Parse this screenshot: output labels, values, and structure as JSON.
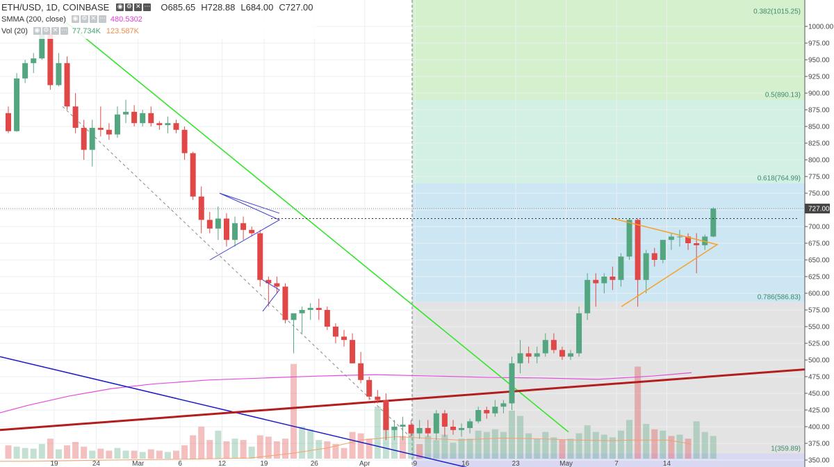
{
  "legend": {
    "symbol": "ETH/USD, 1D, COINBASE",
    "open_label": "O",
    "open": "685.65",
    "high_label": "H",
    "high": "728.88",
    "low_label": "L",
    "low": "684.00",
    "close_label": "C",
    "close": "727.00",
    "ma_label": "SMMA (200, close)",
    "ma_value": "480.5302",
    "vol_label": "Vol (20)",
    "vol_value_1": "77.734K",
    "vol_value_2": "123.587K",
    "buttons": [
      "eye-icon",
      "settings-icon",
      "close-icon",
      "more-icon"
    ]
  },
  "colors": {
    "up": "#53a67f",
    "down": "#e04848",
    "price_line_badge": "#444444",
    "ma_line": "#e54cdc",
    "vol_ma": "#f2a06b",
    "green_trendline": "#34e52a",
    "blue_trendline": "#1c1cc8",
    "red_trendline": "#b31d1d",
    "pennant_blue": "#3e3ecc",
    "triangle_orange": "#f6a128"
  },
  "chart_data": {
    "type": "candlestick",
    "y_axis": {
      "ticks": [
        350,
        375,
        400,
        425,
        450,
        475,
        500,
        525,
        550,
        575,
        600,
        625,
        650,
        675,
        700,
        725,
        750,
        775,
        800,
        825,
        850,
        875,
        900,
        925,
        950,
        975,
        1000
      ],
      "tick_labels": [
        "350.00",
        "375.00",
        "400.00",
        "425.00",
        "450.00",
        "475.00",
        "500.00",
        "525.00",
        "550.00",
        "575.00",
        "600.00",
        "625.00",
        "650.00",
        "675.00",
        "700.00",
        "725.00",
        "750.00",
        "775.00",
        "800.00",
        "825.00",
        "850.00",
        "875.00",
        "900.00",
        "925.00",
        "950.00",
        "975.00",
        "1000.00"
      ],
      "range": [
        332,
        1006
      ]
    },
    "x_axis": {
      "labels": [
        "19",
        "24",
        "Mar",
        "6",
        "12",
        "19",
        "26",
        "Apr",
        "9",
        "16",
        "23",
        "May",
        "7",
        "14"
      ]
    },
    "current_price": "727.00",
    "fibonacci": [
      {
        "label": "0.382(1015.25)",
        "value": 1015.25
      },
      {
        "label": "0.5(890.13)",
        "value": 890.13
      },
      {
        "label": "0.618(764.99)",
        "value": 764.99
      },
      {
        "label": "0.786(586.83)",
        "value": 586.83
      },
      {
        "label": "1(359.89)",
        "value": 359.89
      }
    ],
    "candles": [
      [
        870,
        880,
        840,
        843
      ],
      [
        843,
        930,
        842,
        922
      ],
      [
        922,
        950,
        915,
        945
      ],
      [
        945,
        960,
        930,
        952
      ],
      [
        952,
        1000,
        950,
        990
      ],
      [
        990,
        995,
        905,
        912
      ],
      [
        912,
        960,
        910,
        945
      ],
      [
        945,
        955,
        875,
        880
      ],
      [
        880,
        900,
        840,
        848
      ],
      [
        848,
        860,
        800,
        815
      ],
      [
        815,
        860,
        790,
        848
      ],
      [
        848,
        880,
        835,
        845
      ],
      [
        845,
        855,
        830,
        838
      ],
      [
        838,
        880,
        833,
        868
      ],
      [
        868,
        890,
        855,
        872
      ],
      [
        872,
        882,
        850,
        855
      ],
      [
        855,
        875,
        850,
        870
      ],
      [
        870,
        880,
        850,
        855
      ],
      [
        855,
        858,
        845,
        852
      ],
      [
        852,
        865,
        840,
        855
      ],
      [
        855,
        860,
        840,
        845
      ],
      [
        845,
        850,
        800,
        810
      ],
      [
        810,
        812,
        740,
        745
      ],
      [
        745,
        760,
        690,
        710
      ],
      [
        710,
        722,
        690,
        697
      ],
      [
        697,
        730,
        680,
        712
      ],
      [
        712,
        720,
        670,
        680
      ],
      [
        680,
        715,
        670,
        705
      ],
      [
        705,
        715,
        680,
        695
      ],
      [
        695,
        700,
        685,
        690
      ],
      [
        690,
        695,
        610,
        620
      ],
      [
        620,
        625,
        580,
        615
      ],
      [
        615,
        625,
        600,
        610
      ],
      [
        610,
        615,
        555,
        560
      ],
      [
        560,
        568,
        510,
        570
      ],
      [
        570,
        580,
        540,
        575
      ],
      [
        575,
        585,
        560,
        578
      ],
      [
        578,
        592,
        560,
        575
      ],
      [
        575,
        580,
        545,
        550
      ],
      [
        550,
        555,
        525,
        535
      ],
      [
        535,
        545,
        520,
        530
      ],
      [
        530,
        540,
        495,
        495
      ],
      [
        495,
        512,
        465,
        470
      ],
      [
        470,
        475,
        440,
        445
      ],
      [
        445,
        455,
        435,
        440
      ],
      [
        440,
        450,
        380,
        395
      ],
      [
        395,
        410,
        380,
        400
      ],
      [
        400,
        415,
        380,
        403
      ],
      [
        403,
        410,
        385,
        390
      ],
      [
        390,
        410,
        382,
        398
      ],
      [
        398,
        410,
        385,
        390
      ],
      [
        390,
        425,
        380,
        420
      ],
      [
        420,
        425,
        385,
        400
      ],
      [
        400,
        410,
        388,
        395
      ],
      [
        395,
        405,
        385,
        398
      ],
      [
        398,
        412,
        390,
        408
      ],
      [
        408,
        430,
        405,
        425
      ],
      [
        425,
        430,
        412,
        420
      ],
      [
        420,
        440,
        415,
        430
      ],
      [
        430,
        440,
        420,
        435
      ],
      [
        435,
        505,
        425,
        495
      ],
      [
        495,
        530,
        480,
        510
      ],
      [
        510,
        520,
        495,
        505
      ],
      [
        505,
        520,
        495,
        510
      ],
      [
        510,
        540,
        505,
        530
      ],
      [
        530,
        540,
        510,
        515
      ],
      [
        515,
        520,
        500,
        505
      ],
      [
        505,
        515,
        500,
        510
      ],
      [
        510,
        580,
        505,
        570
      ],
      [
        570,
        630,
        560,
        620
      ],
      [
        620,
        630,
        580,
        615
      ],
      [
        615,
        630,
        600,
        625
      ],
      [
        625,
        640,
        605,
        620
      ],
      [
        620,
        660,
        610,
        655
      ],
      [
        655,
        712,
        650,
        710
      ],
      [
        710,
        712,
        580,
        620
      ],
      [
        620,
        665,
        600,
        660
      ],
      [
        660,
        668,
        640,
        650
      ],
      [
        650,
        680,
        645,
        680
      ],
      [
        680,
        690,
        665,
        685
      ],
      [
        685,
        695,
        670,
        685
      ],
      [
        685,
        690,
        665,
        675
      ],
      [
        675,
        690,
        630,
        672
      ],
      [
        672,
        688,
        665,
        685
      ],
      [
        685,
        729,
        684,
        727
      ]
    ],
    "volume": [
      [
        20,
        0
      ],
      [
        18,
        1
      ],
      [
        16,
        1
      ],
      [
        15,
        1
      ],
      [
        22,
        1
      ],
      [
        30,
        0
      ],
      [
        14,
        1
      ],
      [
        20,
        0
      ],
      [
        25,
        0
      ],
      [
        18,
        0
      ],
      [
        12,
        1
      ],
      [
        15,
        0
      ],
      [
        12,
        0
      ],
      [
        16,
        1
      ],
      [
        12,
        1
      ],
      [
        12,
        0
      ],
      [
        10,
        1
      ],
      [
        14,
        0
      ],
      [
        12,
        0
      ],
      [
        10,
        1
      ],
      [
        12,
        0
      ],
      [
        20,
        0
      ],
      [
        35,
        0
      ],
      [
        48,
        0
      ],
      [
        28,
        0
      ],
      [
        42,
        1
      ],
      [
        26,
        0
      ],
      [
        30,
        1
      ],
      [
        28,
        0
      ],
      [
        18,
        1
      ],
      [
        35,
        0
      ],
      [
        33,
        0
      ],
      [
        26,
        0
      ],
      [
        30,
        0
      ],
      [
        142,
        0
      ],
      [
        48,
        1
      ],
      [
        44,
        1
      ],
      [
        28,
        1
      ],
      [
        26,
        0
      ],
      [
        22,
        0
      ],
      [
        16,
        0
      ],
      [
        40,
        0
      ],
      [
        38,
        0
      ],
      [
        30,
        0
      ],
      [
        78,
        1
      ],
      [
        76,
        1
      ],
      [
        48,
        1
      ],
      [
        34,
        0
      ],
      [
        38,
        1
      ],
      [
        22,
        0
      ],
      [
        34,
        1
      ],
      [
        28,
        1
      ],
      [
        36,
        1
      ],
      [
        24,
        1
      ],
      [
        30,
        1
      ],
      [
        30,
        1
      ],
      [
        42,
        1
      ],
      [
        40,
        1
      ],
      [
        44,
        1
      ],
      [
        40,
        1
      ],
      [
        72,
        1
      ],
      [
        64,
        1
      ],
      [
        38,
        1
      ],
      [
        30,
        1
      ],
      [
        40,
        1
      ],
      [
        32,
        1
      ],
      [
        28,
        0
      ],
      [
        30,
        1
      ],
      [
        38,
        1
      ],
      [
        50,
        1
      ],
      [
        40,
        1
      ],
      [
        36,
        1
      ],
      [
        32,
        1
      ],
      [
        42,
        1
      ],
      [
        58,
        1
      ],
      [
        138,
        0
      ],
      [
        52,
        1
      ],
      [
        44,
        0
      ],
      [
        42,
        1
      ],
      [
        34,
        0
      ],
      [
        36,
        1
      ],
      [
        30,
        0
      ],
      [
        56,
        1
      ],
      [
        40,
        1
      ],
      [
        34,
        1
      ]
    ],
    "smma_200": [
      [
        -10,
        418
      ],
      [
        40,
        432
      ],
      [
        100,
        446
      ],
      [
        160,
        457
      ],
      [
        220,
        464
      ],
      [
        300,
        470
      ],
      [
        380,
        473
      ],
      [
        460,
        476
      ],
      [
        540,
        478
      ],
      [
        620,
        476
      ],
      [
        700,
        474
      ],
      [
        780,
        473
      ],
      [
        860,
        471
      ],
      [
        940,
        476
      ],
      [
        995,
        481
      ]
    ],
    "vol_ma": [
      [
        0,
        348
      ],
      [
        40,
        348
      ],
      [
        100,
        349
      ],
      [
        160,
        350
      ],
      [
        240,
        351
      ],
      [
        300,
        352
      ],
      [
        360,
        353
      ],
      [
        420,
        360
      ],
      [
        470,
        368
      ],
      [
        520,
        380
      ],
      [
        570,
        385
      ],
      [
        610,
        383
      ],
      [
        660,
        380
      ],
      [
        720,
        383
      ],
      [
        770,
        382
      ],
      [
        830,
        380
      ],
      [
        880,
        379
      ],
      [
        910,
        380
      ],
      [
        960,
        380
      ],
      [
        995,
        374
      ]
    ]
  },
  "annotations": {
    "green_trendline": {
      "x1": 95,
      "y1": 1006,
      "x2": 818,
      "y2": 392
    },
    "blue_trendline": {
      "x1": 0,
      "y1": 505,
      "x2": 700,
      "y2": 332
    },
    "red_trendline": {
      "x1": 0,
      "y1": 395,
      "x2": 1160,
      "y2": 486
    },
    "dashed_channel": {
      "x1": 90,
      "y1": 880,
      "x2": 590,
      "y2": 385
    }
  }
}
